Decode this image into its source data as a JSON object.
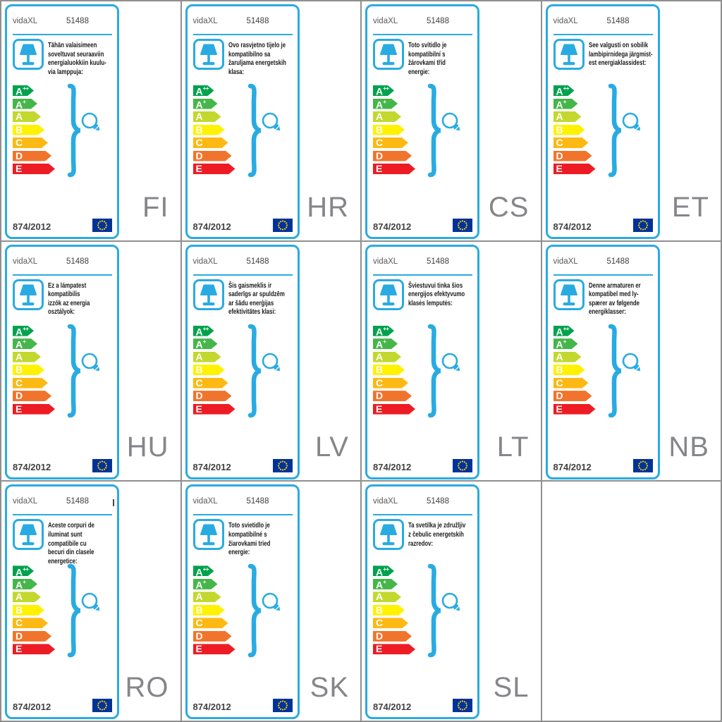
{
  "grid": {
    "line_color": "#8f8f8f",
    "background": "#ffffff"
  },
  "card_common": {
    "brand": "vidaXL",
    "product_number": "51488",
    "regulation": "874/2012",
    "accent_blue": "#29abe2",
    "eu_flag_blue": "#003399",
    "eu_flag_star_yellow": "#ffcc00",
    "energy_classes": [
      {
        "label": "A",
        "sup": "++",
        "color": "#00a24c"
      },
      {
        "label": "A",
        "sup": "+",
        "color": "#45b649"
      },
      {
        "label": "A",
        "sup": "",
        "color": "#c2d82e"
      },
      {
        "label": "B",
        "sup": "",
        "color": "#fff200"
      },
      {
        "label": "C",
        "sup": "",
        "color": "#fdb913"
      },
      {
        "label": "D",
        "sup": "",
        "color": "#f1742c"
      },
      {
        "label": "E",
        "sup": "",
        "color": "#ed1c24"
      }
    ],
    "icons": {
      "lamp": "table-lamp-icon",
      "bulb": "light-bulb-icon",
      "brace": "curly-brace-icon",
      "flag": "eu-flag-icon"
    }
  },
  "cards": [
    {
      "lang": "FI",
      "desc": "Tähän valaisimeen\nsoveltuvat seuraaviin\nenergialuokkiin kuulu-\nvia lamppuja:"
    },
    {
      "lang": "HR",
      "desc": "Ovo rasvjetno tijelo je\nkompatibilno sa\nžaruljama energetskih\nklasa:"
    },
    {
      "lang": "CS",
      "desc": "Toto svítidlo je\nkompatibilní s\nžárovkami tříd\nenergie:"
    },
    {
      "lang": "ET",
      "desc": "See valgusti on sobilik\nlambipirnidega järgmist-\nest energiaklassidest:"
    },
    {
      "lang": "HU",
      "desc": "Ez a lámpatest\nkompatibilis\nizzók az energia\nosztályok:"
    },
    {
      "lang": "LV",
      "desc": "Šis gaismeklis ir\nsaderīgs ar spuldzēm\nar šādu enerģijas\nefektivitātes klasi:"
    },
    {
      "lang": "LT",
      "desc": "Šviestuvui tinka šios\nenergijos efektyvumo\nklasės lemputės:"
    },
    {
      "lang": "NB",
      "desc": "Denne armaturen er\nkompatibel med ly-\nspærer av følgende\nenergiklasser:"
    },
    {
      "lang": "RO",
      "desc": "Aceste corpuri de\niluminat sunt\ncompatibile cu\nbecuri din clasele\nenergetice:",
      "stray_mark": true
    },
    {
      "lang": "SK",
      "desc": "Toto svietidlo je\nkompatibilné s\nžiarovkami tried\nenergie:"
    },
    {
      "lang": "SL",
      "desc": "Ta svetilka je združljiv\nz čebulic energetskih\nrazredov:"
    }
  ]
}
